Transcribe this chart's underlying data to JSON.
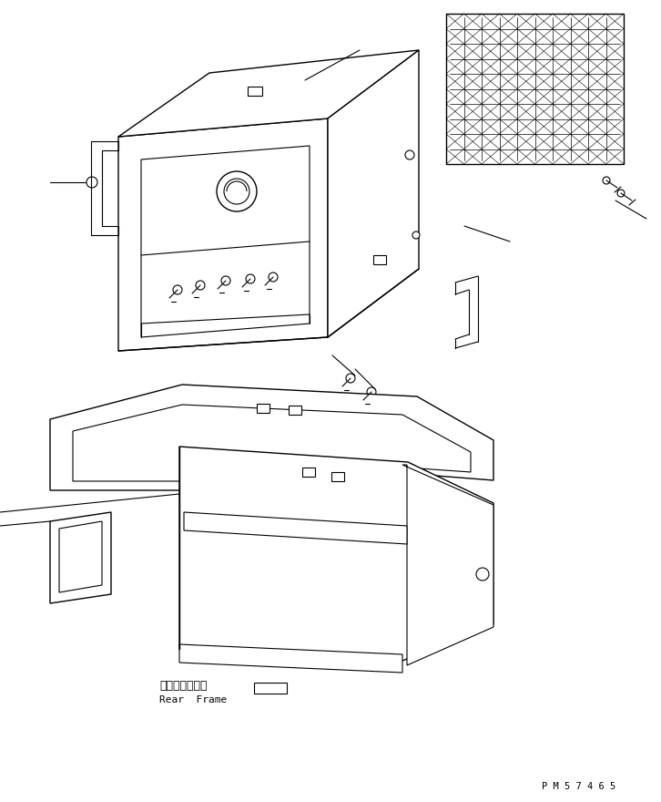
{
  "bg_color": "#ffffff",
  "line_color": "#000000",
  "line_width": 0.8,
  "part_number": "P M 5 7 4 6 5",
  "label_jp": "リヤーフレーム",
  "label_en": "Rear  Frame",
  "figsize": [
    7.26,
    8.8
  ],
  "dpi": 100
}
